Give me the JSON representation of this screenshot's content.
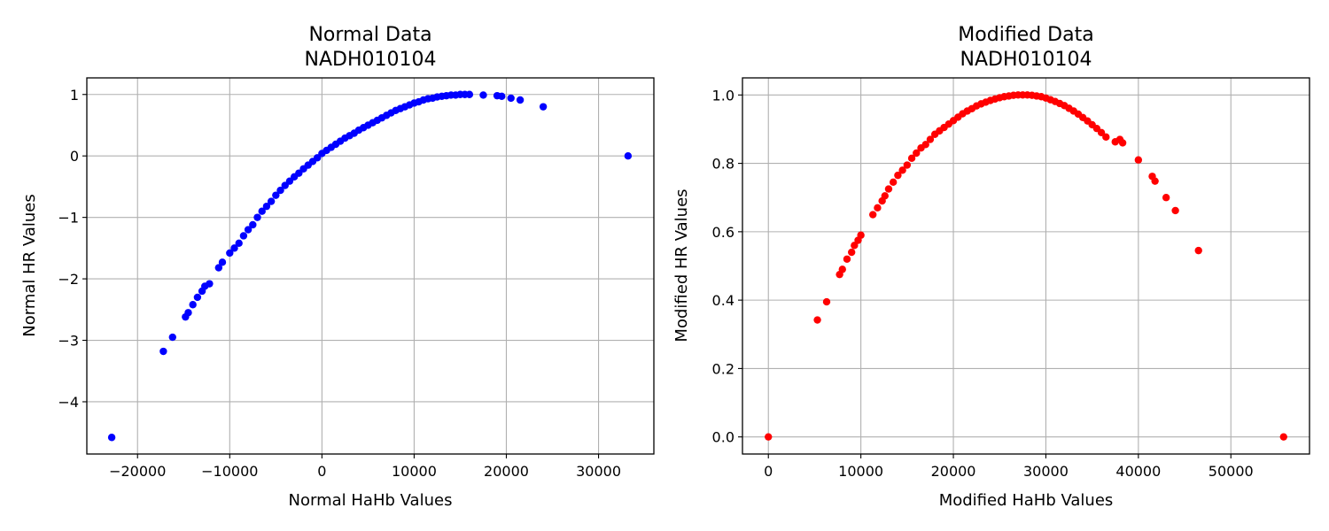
{
  "chart_data": [
    {
      "type": "scatter",
      "title": "Normal Data\nNADH010104",
      "xlabel": "Normal HaHb Values",
      "ylabel": "Normal HR Values",
      "xlim": [
        -25500,
        36000
      ],
      "ylim": [
        -4.85,
        1.27
      ],
      "xticks": [
        -20000,
        -10000,
        0,
        10000,
        20000,
        30000
      ],
      "xtick_labels": [
        "−20000",
        "−10000",
        "0",
        "10000",
        "20000",
        "30000"
      ],
      "yticks": [
        -4,
        -3,
        -2,
        -1,
        0,
        1
      ],
      "ytick_labels": [
        "−4",
        "−3",
        "−2",
        "−1",
        "0",
        "1"
      ],
      "grid": true,
      "color": "#0000ff",
      "x": [
        -22800,
        -17200,
        -16200,
        -14800,
        -14500,
        -14000,
        -13500,
        -13000,
        -12700,
        -12200,
        -11200,
        -10800,
        -10000,
        -9500,
        -9000,
        -8500,
        -8000,
        -7500,
        -7000,
        -6500,
        -6000,
        -5500,
        -5000,
        -4500,
        -4000,
        -3500,
        -3000,
        -2500,
        -2000,
        -1500,
        -1000,
        -500,
        0,
        500,
        1000,
        1500,
        2000,
        2500,
        3000,
        3500,
        4000,
        4500,
        5000,
        5500,
        6000,
        6500,
        7000,
        7500,
        8000,
        8500,
        9000,
        9500,
        10000,
        10500,
        11000,
        11500,
        12000,
        12500,
        13000,
        13500,
        14000,
        14500,
        15000,
        15500,
        16000,
        17500,
        19000,
        19500,
        20500,
        21500,
        24000,
        33200
      ],
      "y": [
        -4.58,
        -3.18,
        -2.95,
        -2.62,
        -2.55,
        -2.42,
        -2.3,
        -2.2,
        -2.12,
        -2.08,
        -1.82,
        -1.73,
        -1.58,
        -1.5,
        -1.42,
        -1.3,
        -1.2,
        -1.12,
        -1.0,
        -0.9,
        -0.82,
        -0.74,
        -0.64,
        -0.56,
        -0.48,
        -0.41,
        -0.34,
        -0.28,
        -0.21,
        -0.15,
        -0.09,
        -0.03,
        0.04,
        0.09,
        0.14,
        0.19,
        0.24,
        0.29,
        0.33,
        0.37,
        0.42,
        0.46,
        0.5,
        0.54,
        0.58,
        0.62,
        0.66,
        0.7,
        0.74,
        0.77,
        0.8,
        0.83,
        0.86,
        0.88,
        0.91,
        0.93,
        0.94,
        0.96,
        0.97,
        0.98,
        0.99,
        0.99,
        1.0,
        1.0,
        1.0,
        0.99,
        0.98,
        0.97,
        0.94,
        0.91,
        0.8,
        0.0
      ]
    },
    {
      "type": "scatter",
      "title": "Modified Data\nNADH010104",
      "xlabel": "Modified HaHb Values",
      "ylabel": "Modified HR Values",
      "xlim": [
        -2800,
        58500
      ],
      "ylim": [
        -0.05,
        1.05
      ],
      "xticks": [
        0,
        10000,
        20000,
        30000,
        40000,
        50000
      ],
      "xtick_labels": [
        "0",
        "10000",
        "20000",
        "30000",
        "40000",
        "50000"
      ],
      "yticks": [
        0.0,
        0.2,
        0.4,
        0.6,
        0.8,
        1.0
      ],
      "ytick_labels": [
        "0.0",
        "0.2",
        "0.4",
        "0.6",
        "0.8",
        "1.0"
      ],
      "grid": true,
      "color": "#ff0000",
      "x": [
        0,
        5300,
        6300,
        7700,
        8000,
        8500,
        9000,
        9300,
        9700,
        10000,
        11300,
        11800,
        12300,
        12600,
        13000,
        13500,
        14000,
        14500,
        15000,
        15500,
        16000,
        16500,
        17000,
        17500,
        18000,
        18500,
        19000,
        19500,
        20000,
        20500,
        21000,
        21500,
        22000,
        22500,
        23000,
        23500,
        24000,
        24500,
        25000,
        25500,
        26000,
        26500,
        27000,
        27500,
        28000,
        28500,
        29000,
        29500,
        30000,
        30500,
        31000,
        31500,
        32000,
        32500,
        33000,
        33500,
        34000,
        34500,
        35000,
        35500,
        36000,
        36500,
        37500,
        38000,
        38300,
        40000,
        41500,
        41800,
        43000,
        44000,
        46500,
        55700
      ],
      "y": [
        0.0,
        0.342,
        0.395,
        0.475,
        0.49,
        0.52,
        0.54,
        0.56,
        0.575,
        0.59,
        0.65,
        0.67,
        0.69,
        0.705,
        0.725,
        0.745,
        0.765,
        0.78,
        0.795,
        0.815,
        0.83,
        0.845,
        0.855,
        0.87,
        0.885,
        0.895,
        0.905,
        0.915,
        0.925,
        0.935,
        0.945,
        0.953,
        0.96,
        0.968,
        0.974,
        0.979,
        0.984,
        0.988,
        0.992,
        0.995,
        0.997,
        0.999,
        1.0,
        1.0,
        1.0,
        0.999,
        0.997,
        0.995,
        0.991,
        0.986,
        0.981,
        0.975,
        0.969,
        0.961,
        0.953,
        0.944,
        0.934,
        0.924,
        0.913,
        0.902,
        0.89,
        0.877,
        0.863,
        0.87,
        0.86,
        0.81,
        0.762,
        0.748,
        0.7,
        0.662,
        0.545,
        0.0
      ]
    }
  ]
}
